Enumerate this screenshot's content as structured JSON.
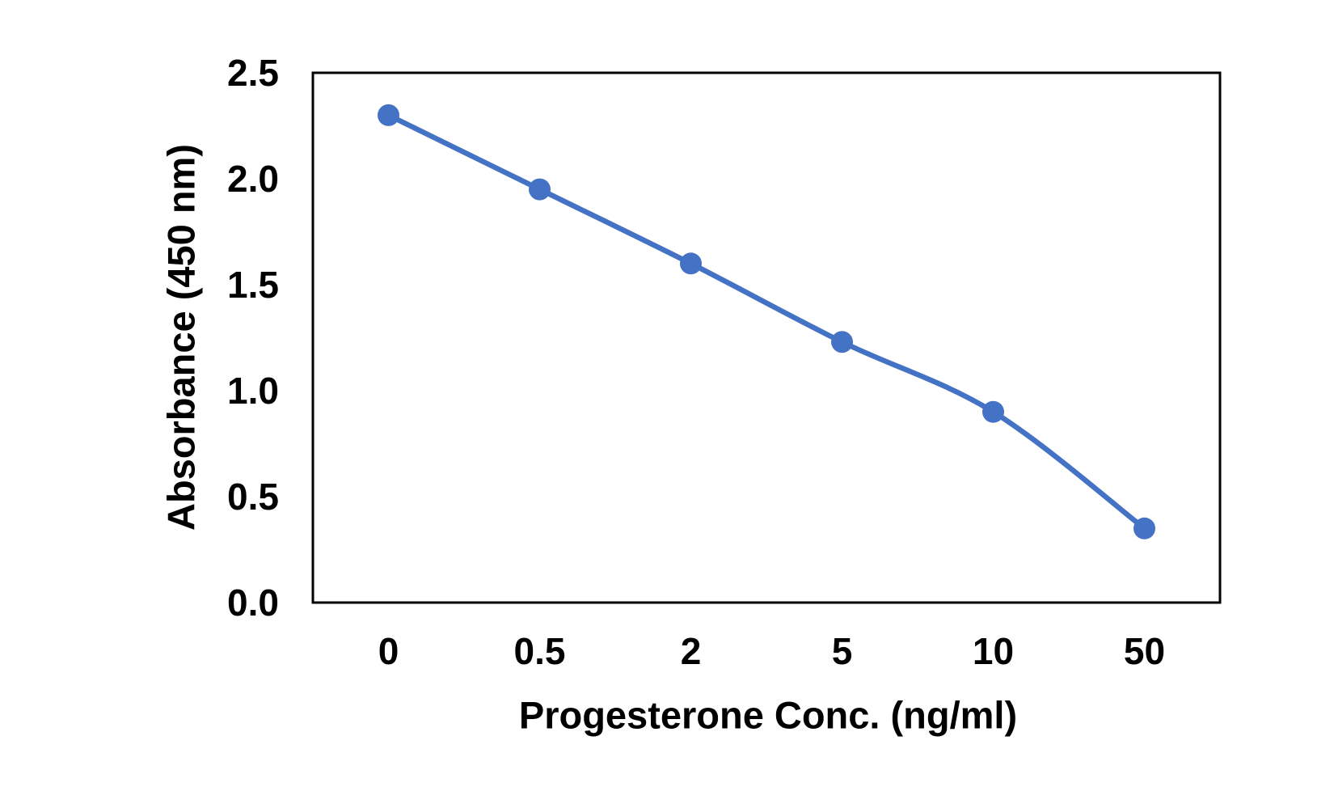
{
  "chart_data": {
    "type": "line",
    "title": "",
    "categories": [
      "0",
      "0.5",
      "2",
      "5",
      "10",
      "50"
    ],
    "series": [
      {
        "name": "Absorbance",
        "values": [
          2.3,
          1.95,
          1.6,
          1.23,
          0.9,
          0.35
        ]
      }
    ],
    "xlabel": "Progesterone Conc. (ng/ml)",
    "ylabel": "Absorbance (450 nm)",
    "ylim": [
      0,
      2.5
    ],
    "y_ticks": [
      "0.0",
      "0.5",
      "1.0",
      "1.5",
      "2.0",
      "2.5"
    ],
    "y_tick_values": [
      0,
      0.5,
      1.0,
      1.5,
      2.0,
      2.5
    ],
    "x_axis_scale": "categorical",
    "grid": false,
    "legend_position": "none",
    "line_style": "smooth",
    "marker": "circle",
    "colors": {
      "series": "#4472C4",
      "axis_frame": "#000000",
      "text": "#000000",
      "background": "#FFFFFF"
    }
  }
}
